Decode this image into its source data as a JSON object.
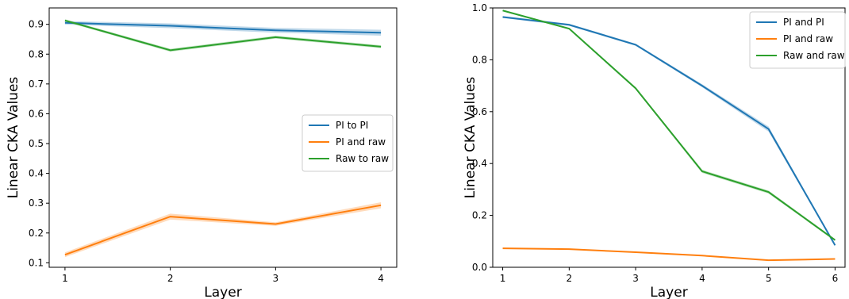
{
  "chart_data": [
    {
      "type": "line",
      "xlabel": "Layer",
      "ylabel": "Linear CKA Values",
      "x": [
        1,
        2,
        3,
        4
      ],
      "xticks": [
        "1",
        "2",
        "3",
        "4"
      ],
      "yticks": [
        "0.1",
        "0.2",
        "0.3",
        "0.4",
        "0.5",
        "0.6",
        "0.7",
        "0.8",
        "0.9"
      ],
      "ylim": [
        0.085,
        0.955
      ],
      "xlim": [
        0.85,
        4.15
      ],
      "grid": false,
      "legend_position": "center-right",
      "series": [
        {
          "name": "PI to PI",
          "color": "#1f77b4",
          "values": [
            0.905,
            0.895,
            0.88,
            0.872
          ],
          "band": [
            0.006,
            0.008,
            0.008,
            0.01
          ]
        },
        {
          "name": "PI and raw",
          "color": "#ff7f0e",
          "values": [
            0.127,
            0.255,
            0.23,
            0.293
          ],
          "band": [
            0.008,
            0.01,
            0.006,
            0.01
          ]
        },
        {
          "name": "Raw to raw",
          "color": "#2ca02c",
          "values": [
            0.913,
            0.813,
            0.857,
            0.825
          ],
          "band": [
            0.004,
            0.005,
            0.005,
            0.005
          ]
        }
      ]
    },
    {
      "type": "line",
      "xlabel": "Layer",
      "ylabel": "Linear CKA Values",
      "x": [
        1,
        2,
        3,
        4,
        5,
        6
      ],
      "xticks": [
        "1",
        "2",
        "3",
        "4",
        "5",
        "6"
      ],
      "yticks": [
        "0.0",
        "0.2",
        "0.4",
        "0.6",
        "0.8",
        "1.0"
      ],
      "ylim": [
        0.0,
        1.0
      ],
      "xlim": [
        0.85,
        6.15
      ],
      "grid": false,
      "legend_position": "top-right",
      "series": [
        {
          "name": "PI and PI",
          "color": "#1f77b4",
          "values": [
            0.965,
            0.935,
            0.858,
            0.7,
            0.533,
            0.085
          ],
          "band": [
            0.004,
            0.004,
            0.004,
            0.006,
            0.01,
            0.004
          ]
        },
        {
          "name": "PI and raw",
          "color": "#ff7f0e",
          "values": [
            0.073,
            0.07,
            0.058,
            0.045,
            0.027,
            0.032
          ],
          "band": [
            0.002,
            0.002,
            0.002,
            0.002,
            0.002,
            0.002
          ]
        },
        {
          "name": "Raw and raw",
          "color": "#2ca02c",
          "values": [
            0.99,
            0.92,
            0.69,
            0.37,
            0.29,
            0.105
          ],
          "band": [
            0.003,
            0.003,
            0.004,
            0.006,
            0.006,
            0.004
          ]
        }
      ]
    }
  ]
}
